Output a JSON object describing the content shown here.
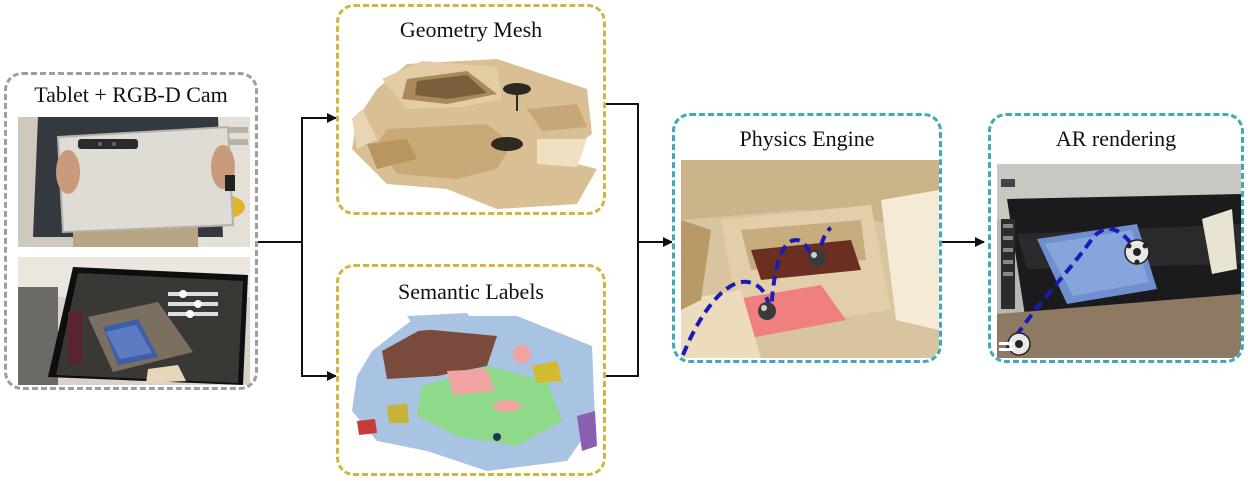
{
  "panels": {
    "tablet": {
      "title": "Tablet + RGB-D Cam"
    },
    "geometry": {
      "title": "Geometry Mesh"
    },
    "semantic": {
      "title": "Semantic Labels"
    },
    "physics": {
      "title": "Physics Engine"
    },
    "ar": {
      "title": "AR rendering"
    }
  },
  "colors": {
    "tablet_border": "#9e9e9e",
    "mesh_border": "#d4b43c",
    "engine_border": "#3fa9b9",
    "trajectory": "#1a1ab8",
    "arrow": "#111111"
  },
  "icons": {
    "ball": "sphere-icon",
    "arrow": "arrow-right-icon"
  }
}
